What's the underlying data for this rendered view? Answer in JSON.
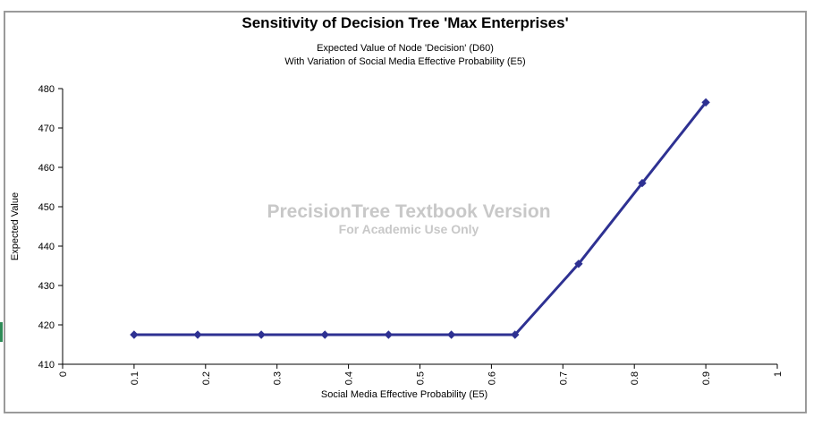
{
  "chart_data": {
    "type": "line",
    "title": "Sensitivity of Decision Tree 'Max Enterprises'",
    "subtitle_lines": [
      "Expected Value of Node 'Decision' (D60)",
      "With Variation of Social Media Effective Probability (E5)"
    ],
    "xlabel": "Social Media Effective Probability (E5)",
    "ylabel": "Expected Value",
    "xlim": [
      0,
      1
    ],
    "ylim": [
      410,
      480
    ],
    "x_ticks": [
      "0",
      "0.1",
      "0.2",
      "0.3",
      "0.4",
      "0.5",
      "0.6",
      "0.7",
      "0.8",
      "0.9",
      "1"
    ],
    "y_ticks": [
      "410",
      "420",
      "430",
      "440",
      "450",
      "460",
      "470",
      "480"
    ],
    "series": [
      {
        "x": [
          0.1,
          0.189,
          0.278,
          0.367,
          0.456,
          0.544,
          0.633,
          0.722,
          0.811,
          0.9
        ],
        "y": [
          417.5,
          417.5,
          417.5,
          417.5,
          417.5,
          417.5,
          417.5,
          435.5,
          456,
          476.5
        ],
        "color": "#2e3192",
        "marker": "diamond"
      }
    ],
    "watermark": {
      "line1": "PrecisionTree Textbook Version",
      "line2": "For Academic Use Only"
    },
    "grid": false,
    "legend": "none"
  }
}
